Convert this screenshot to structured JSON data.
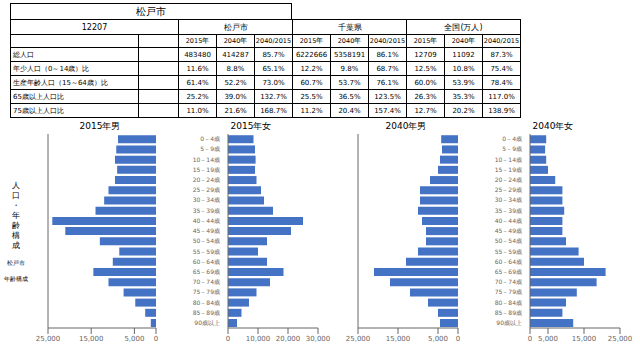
{
  "title": "松戸市",
  "table": {
    "code": "12207",
    "groups": [
      "松戸市",
      "千葉県",
      "全国(万人)"
    ],
    "columns": [
      "2015年",
      "2040年",
      "2040/2015",
      "2015年",
      "2040年",
      "2040/2015",
      "2015年",
      "2040年",
      "2040/2015"
    ],
    "rows": [
      {
        "label": "総人口",
        "values": [
          "483480",
          "414287",
          "85.7%",
          "6222666",
          "5358191",
          "86.1%",
          "12709",
          "11092",
          "87.3%"
        ]
      },
      {
        "label": "年少人口（0～14歳）比",
        "values": [
          "11.6%",
          "8.8%",
          "65.1%",
          "12.2%",
          "9.8%",
          "68.7%",
          "12.5%",
          "10.8%",
          "75.4%"
        ]
      },
      {
        "label": "生産年齢人口（15～64歳）比",
        "values": [
          "61.4%",
          "52.2%",
          "73.0%",
          "60.7%",
          "53.7%",
          "76.1%",
          "60.0%",
          "53.9%",
          "78.4%"
        ]
      },
      {
        "label": "65歳以上人口比",
        "values": [
          "25.2%",
          "39.0%",
          "132.7%",
          "25.5%",
          "36.5%",
          "123.5%",
          "26.3%",
          "35.3%",
          "117.0%"
        ]
      },
      {
        "label": "75歳以上人口比",
        "values": [
          "11.0%",
          "21.6%",
          "168.7%",
          "11.2%",
          "20.4%",
          "157.4%",
          "12.7%",
          "20.2%",
          "138.9%"
        ]
      }
    ]
  },
  "annotations": [
    "人\n口\n・\n年\n齢\n構\n成",
    "松戸市",
    "年齢構成"
  ],
  "chart_data": [
    {
      "type": "bar",
      "orientation": "horizontal",
      "title": "2015年男",
      "categories": [
        "90歳以上",
        "85－89歳",
        "80－84歳",
        "75－79歳",
        "70－74歳",
        "65－69歳",
        "60－64歳",
        "55－59歳",
        "50－54歳",
        "45－49歳",
        "40－44歳",
        "35－39歳",
        "30－34歳",
        "25－29歳",
        "20－24歳",
        "15－19歳",
        "10－14歳",
        "5－9歳",
        "0－4歳"
      ],
      "values": [
        1200,
        2500,
        4800,
        7500,
        11000,
        14500,
        10000,
        8500,
        13000,
        21000,
        24000,
        14000,
        12000,
        11000,
        9500,
        9000,
        9500,
        9200,
        8800
      ],
      "color": "#4472C4",
      "xlim": [
        25000,
        0
      ],
      "xticks": [
        {
          "value": 25000,
          "label": "25,000"
        },
        {
          "value": 20000,
          "label": "20,000"
        },
        {
          "value": 15000,
          "label": "15,000"
        },
        {
          "value": 10000,
          "label": "10,000"
        },
        {
          "value": 5000,
          "label": "5,000"
        },
        0
      ],
      "tick_labels": "x"
    },
    {
      "type": "bar",
      "orientation": "horizontal",
      "title": "2015年女",
      "categories": [
        "90歳以上",
        "85－89歳",
        "80－84歳",
        "75－79歳",
        "70－74歳",
        "65－69歳",
        "60－64歳",
        "55－59歳",
        "50－54歳",
        "45－49歳",
        "40－44歳",
        "35－39歳",
        "30－34歳",
        "25－29歳",
        "20－24歳",
        "15－19歳",
        "10－14歳",
        "5－9歳",
        "0－4歳"
      ],
      "values": [
        3000,
        4500,
        7000,
        9500,
        14000,
        18500,
        13000,
        10000,
        13000,
        21000,
        25000,
        15000,
        12000,
        11000,
        9500,
        9000,
        9200,
        9000,
        8500
      ],
      "color": "#4472C4",
      "xlim": [
        0,
        30000
      ],
      "xticks": [
        0,
        {
          "value": 10000,
          "label": "10,000"
        },
        {
          "value": 20000,
          "label": "20,000"
        },
        {
          "value": 30000,
          "label": "30,000"
        }
      ]
    },
    {
      "type": "bar",
      "orientation": "horizontal",
      "title": "2040年男",
      "categories": [
        "90歳以上",
        "85－89歳",
        "80－84歳",
        "75－79歳",
        "70－74歳",
        "65－69歳",
        "60－64歳",
        "55－59歳",
        "50－54歳",
        "45－49歳",
        "40－44歳",
        "35－39歳",
        "30－34歳",
        "25－29歳",
        "20－24歳",
        "15－19歳",
        "10－14歳",
        "5－9歳",
        "0－4歳"
      ],
      "values": [
        4500,
        5000,
        7500,
        12000,
        17000,
        21000,
        13000,
        10000,
        8000,
        8000,
        9000,
        10000,
        9500,
        9500,
        7000,
        5000,
        4500,
        4000,
        4200
      ],
      "color": "#4472C4",
      "xlim": [
        25000,
        0
      ],
      "xticks": [
        {
          "value": 25000,
          "label": "25,000"
        },
        {
          "value": 20000,
          "label": "20,000"
        },
        {
          "value": 15000,
          "label": "15,000"
        },
        {
          "value": 10000,
          "label": "10,000"
        },
        {
          "value": 5000,
          "label": "5,000"
        },
        0
      ],
      "tick_labels": "x"
    },
    {
      "type": "bar",
      "orientation": "horizontal",
      "title": "2040年女",
      "categories": [
        "90歳以上",
        "85－89歳",
        "80－84歳",
        "75－79歳",
        "70－74歳",
        "65－69歳",
        "60－64歳",
        "55－59歳",
        "50－54歳",
        "45－49歳",
        "40－44歳",
        "35－39歳",
        "30－34歳",
        "25－29歳",
        "20－24歳",
        "15－19歳",
        "10－14歳",
        "5－9歳",
        "0－4歳"
      ],
      "values": [
        12000,
        9000,
        10000,
        13000,
        18500,
        21000,
        15000,
        13500,
        10000,
        9000,
        9000,
        9500,
        9000,
        9000,
        7000,
        5000,
        4500,
        4200,
        4500
      ],
      "color": "#4472C4",
      "xlim": [
        0,
        25000
      ],
      "xticks": [
        0,
        {
          "value": 5000,
          "label": "5,000"
        },
        {
          "value": 10000,
          "label": "10,000"
        },
        {
          "value": 15000,
          "label": "15,000"
        },
        {
          "value": 20000,
          "label": "20,000"
        },
        {
          "value": 25000,
          "label": "25,000"
        }
      ]
    }
  ]
}
